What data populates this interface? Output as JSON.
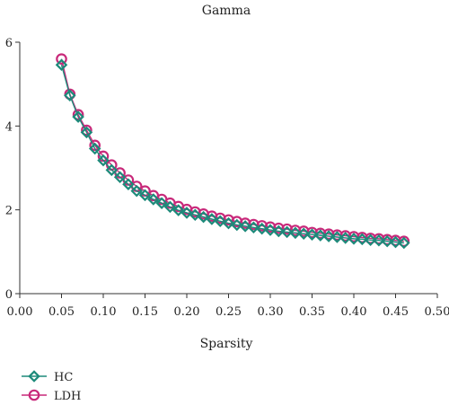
{
  "chart_data": {
    "type": "line",
    "title": "Gamma",
    "xlabel": "Sparsity",
    "ylabel": "",
    "xlim": [
      0.0,
      0.5
    ],
    "ylim": [
      0,
      6
    ],
    "xticks": [
      "0.00",
      "0.05",
      "0.10",
      "0.15",
      "0.20",
      "0.25",
      "0.30",
      "0.35",
      "0.40",
      "0.45",
      "0.50"
    ],
    "yticks": [
      "0",
      "2",
      "4",
      "6"
    ],
    "grid": false,
    "legend_position": "bottom-left",
    "x": [
      0.05,
      0.06,
      0.07,
      0.08,
      0.09,
      0.1,
      0.11,
      0.12,
      0.13,
      0.14,
      0.15,
      0.16,
      0.17,
      0.18,
      0.19,
      0.2,
      0.21,
      0.22,
      0.23,
      0.24,
      0.25,
      0.26,
      0.27,
      0.28,
      0.29,
      0.3,
      0.31,
      0.32,
      0.33,
      0.34,
      0.35,
      0.36,
      0.37,
      0.38,
      0.39,
      0.4,
      0.41,
      0.42,
      0.43,
      0.44,
      0.45,
      0.46
    ],
    "series": [
      {
        "name": "HC",
        "color": "#1d8a7a",
        "marker": "diamond",
        "values": [
          5.46,
          4.73,
          4.22,
          3.85,
          3.46,
          3.18,
          2.95,
          2.78,
          2.61,
          2.45,
          2.35,
          2.25,
          2.16,
          2.07,
          1.99,
          1.93,
          1.88,
          1.83,
          1.78,
          1.73,
          1.68,
          1.64,
          1.61,
          1.58,
          1.55,
          1.52,
          1.49,
          1.47,
          1.45,
          1.43,
          1.41,
          1.39,
          1.37,
          1.35,
          1.33,
          1.31,
          1.3,
          1.28,
          1.27,
          1.25,
          1.23,
          1.21
        ]
      },
      {
        "name": "LDH",
        "color": "#c8297a",
        "marker": "circle",
        "values": [
          5.6,
          4.76,
          4.27,
          3.9,
          3.54,
          3.28,
          3.07,
          2.88,
          2.71,
          2.56,
          2.45,
          2.34,
          2.25,
          2.16,
          2.08,
          2.01,
          1.95,
          1.9,
          1.85,
          1.8,
          1.76,
          1.72,
          1.68,
          1.65,
          1.62,
          1.59,
          1.56,
          1.54,
          1.51,
          1.49,
          1.46,
          1.44,
          1.42,
          1.4,
          1.38,
          1.36,
          1.34,
          1.32,
          1.31,
          1.29,
          1.27,
          1.25
        ]
      }
    ]
  }
}
